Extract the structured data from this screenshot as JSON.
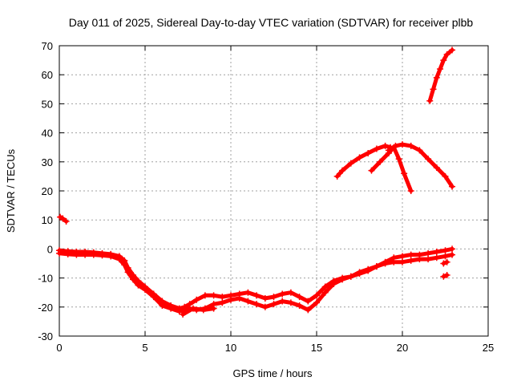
{
  "chart_data": {
    "type": "scatter",
    "title": "Day 011 of 2025, Sidereal Day-to-day VTEC variation (SDTVAR) for receiver plbb",
    "xlabel": "GPS time / hours",
    "ylabel": "SDTVAR / TECUs",
    "xlim": [
      0,
      25
    ],
    "ylim": [
      -30,
      70
    ],
    "xticks": [
      "0",
      "5",
      "10",
      "15",
      "20",
      "25"
    ],
    "yticks": [
      "-30",
      "-20",
      "-10",
      "0",
      "10",
      "20",
      "30",
      "40",
      "50",
      "60",
      "70"
    ],
    "grid": true,
    "color": "#ff0000",
    "series": [
      {
        "name": "early-positive",
        "x": [
          0.05,
          0.2,
          0.4
        ],
        "y": [
          11,
          10.5,
          9.5
        ]
      },
      {
        "name": "main-band-upper",
        "x": [
          0.0,
          0.5,
          1.0,
          1.5,
          2.0,
          2.5,
          3.0,
          3.5,
          3.8,
          4.0,
          4.3,
          4.6,
          5.0,
          5.5,
          6.0,
          6.5,
          7.0,
          7.3,
          7.6,
          8.0,
          8.5,
          9.0,
          9.5,
          10.0,
          10.5,
          11.0,
          11.5,
          12.0,
          12.5,
          13.0,
          13.5,
          14.0,
          14.5,
          15.0,
          15.5,
          16.0,
          16.5,
          17.0,
          17.5,
          18.0,
          18.5,
          19.0,
          19.5,
          20.0,
          20.5,
          21.0,
          21.5,
          22.0,
          22.5,
          22.9
        ],
        "y": [
          -0.5,
          -0.8,
          -1.0,
          -1.0,
          -1.2,
          -1.5,
          -1.8,
          -2.5,
          -4.0,
          -6.5,
          -9.0,
          -11.0,
          -13.0,
          -15.5,
          -18.0,
          -19.5,
          -20.5,
          -20.0,
          -19.0,
          -17.5,
          -16.0,
          -16.0,
          -16.5,
          -16.0,
          -15.5,
          -15.0,
          -16.0,
          -17.0,
          -16.5,
          -15.5,
          -15.0,
          -16.5,
          -18.0,
          -16.0,
          -13.0,
          -11.0,
          -10.0,
          -9.5,
          -8.5,
          -7.5,
          -6.0,
          -4.5,
          -3.0,
          -2.5,
          -2.0,
          -2.0,
          -1.5,
          -1.0,
          -0.5,
          0.0
        ]
      },
      {
        "name": "main-band-lower",
        "x": [
          0.0,
          0.5,
          1.0,
          1.5,
          2.0,
          2.5,
          3.0,
          3.5,
          3.8,
          4.0,
          4.3,
          4.6,
          5.0,
          5.5,
          6.0,
          6.5,
          7.0,
          7.3,
          7.6,
          8.0,
          8.5,
          9.0,
          9.5,
          10.0,
          10.5,
          11.0,
          11.5,
          12.0,
          12.5,
          13.0,
          13.5,
          14.0,
          14.5,
          15.0,
          15.5,
          16.0,
          16.5,
          17.0,
          17.5,
          18.0,
          18.5,
          19.0,
          19.5,
          20.0,
          20.5,
          21.0,
          21.5,
          22.0,
          22.5,
          22.9
        ],
        "y": [
          -1.5,
          -1.8,
          -2.0,
          -2.0,
          -2.0,
          -2.2,
          -2.5,
          -3.5,
          -5.5,
          -8.0,
          -10.5,
          -12.5,
          -14.0,
          -16.5,
          -19.5,
          -20.5,
          -21.5,
          -21.0,
          -20.5,
          -21.0,
          -20.5,
          -19.0,
          -18.5,
          -17.5,
          -17.0,
          -18.0,
          -19.0,
          -20.0,
          -19.0,
          -18.0,
          -18.5,
          -19.5,
          -21.0,
          -18.5,
          -15.0,
          -12.0,
          -10.5,
          -9.5,
          -8.0,
          -7.0,
          -6.0,
          -5.0,
          -4.5,
          -4.5,
          -4.0,
          -3.5,
          -3.5,
          -3.0,
          -2.5,
          -2.0
        ]
      },
      {
        "name": "dip-arc",
        "x": [
          7.2,
          7.8,
          8.4,
          9.0
        ],
        "y": [
          -22.5,
          -20.5,
          -21.0,
          -20.5
        ]
      },
      {
        "name": "tail-low",
        "x": [
          22.4,
          22.6
        ],
        "y": [
          -5.0,
          -4.5
        ]
      },
      {
        "name": "tail-lowest",
        "x": [
          22.4,
          22.6
        ],
        "y": [
          -9.5,
          -9.0
        ]
      },
      {
        "name": "arc-a",
        "x": [
          16.2,
          16.5,
          17.0,
          17.5,
          18.0,
          18.5,
          19.0,
          19.3
        ],
        "y": [
          25,
          27,
          29.5,
          31.5,
          33,
          34.5,
          35.5,
          35
        ]
      },
      {
        "name": "arc-b",
        "x": [
          18.2,
          18.7,
          19.2,
          19.5,
          19.8,
          20.1,
          20.5
        ],
        "y": [
          27,
          30,
          33,
          35,
          31,
          26,
          20
        ]
      },
      {
        "name": "arc-c",
        "x": [
          19.2,
          19.6,
          20.0,
          20.5,
          21.0,
          21.5,
          22.0,
          22.5,
          22.9
        ],
        "y": [
          34,
          35.5,
          36,
          35.5,
          34,
          31,
          28,
          25,
          21.5
        ]
      },
      {
        "name": "steep-rise",
        "x": [
          21.6,
          21.8,
          22.0,
          22.2,
          22.4,
          22.6,
          22.9
        ],
        "y": [
          51,
          55,
          59,
          62,
          65,
          67,
          68.5
        ]
      }
    ]
  }
}
